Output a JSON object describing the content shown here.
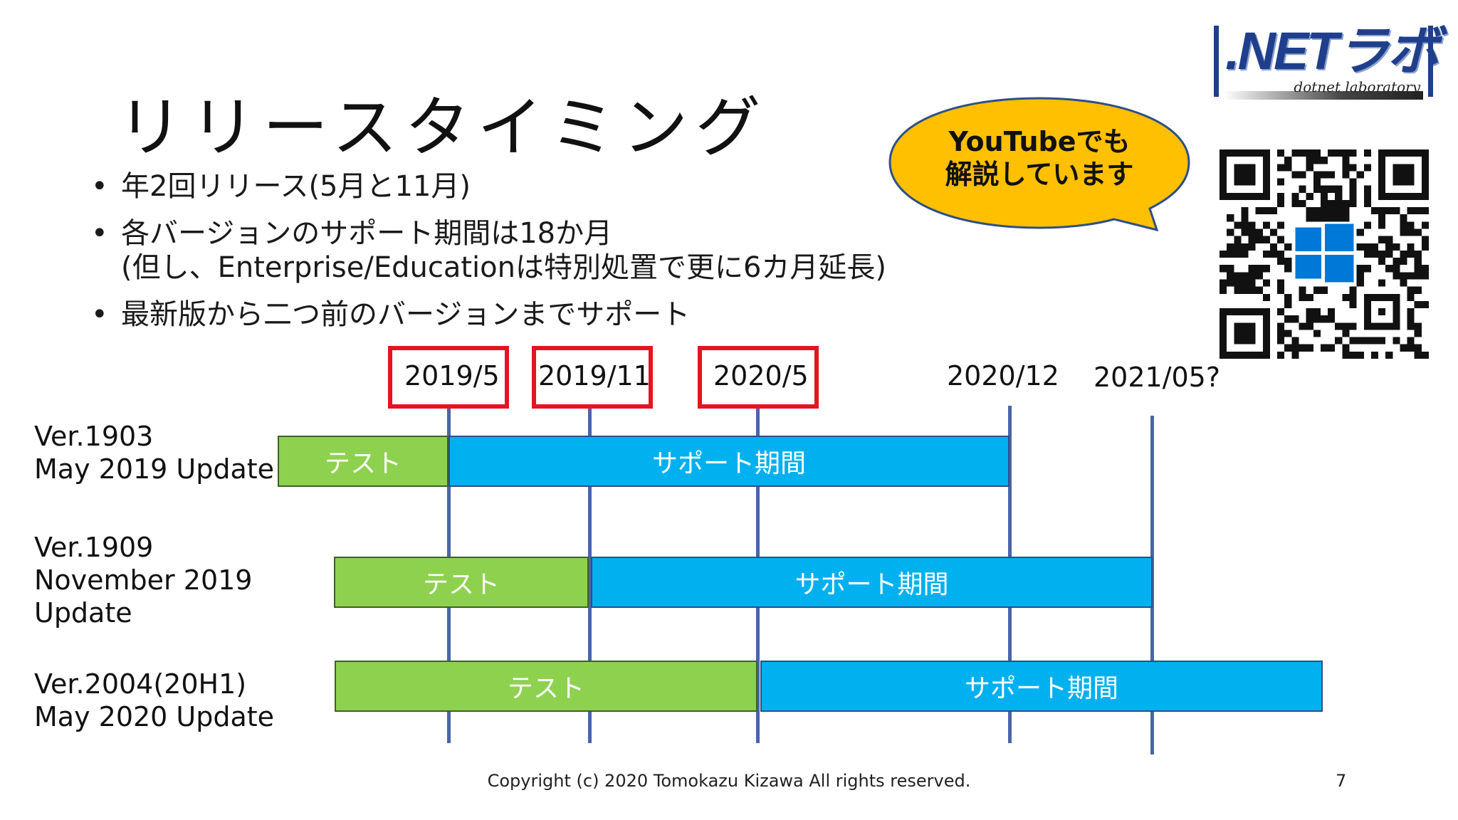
{
  "slide": {
    "title": "リリースタイミング",
    "bullets": [
      {
        "lines": [
          "年2回リリース(5月と11月)"
        ]
      },
      {
        "lines": [
          "各バージョンのサポート期間は18か月",
          "(但し、Enterprise/Educationは特別処置で更に6カ月延長)"
        ]
      },
      {
        "lines": [
          "最新版から二つ前のバージョンまでサポート"
        ]
      }
    ],
    "bullet_symbol": "•"
  },
  "logo": {
    "main": ".NETラボ",
    "sub": "dotnet laboratory",
    "color": "#1f3f8c"
  },
  "bubble": {
    "line1": "YouTubeでも",
    "line2": "解説しています",
    "fill": "#fec000"
  },
  "timeline": {
    "dates": [
      "2019/5",
      "2019/11",
      "2020/5",
      "2020/12",
      "2021/05?"
    ],
    "highlighted": [
      "2019/5",
      "2019/11",
      "2020/5"
    ],
    "versions": [
      {
        "name": "Ver.1903",
        "label": [
          "May 2019 Update"
        ],
        "test": "テスト",
        "support": "サポート期間",
        "test_from": "2018/11",
        "test_to": "2019/5",
        "support_to": "2020/12"
      },
      {
        "name": "Ver.1909",
        "label": [
          "November 2019",
          "Update"
        ],
        "test": "テスト",
        "support": "サポート期間",
        "test_from": "2019/1",
        "test_to": "2019/11",
        "support_to": "2021/05?"
      },
      {
        "name": "Ver.2004(20H1)",
        "label": [
          "May 2020 Update"
        ],
        "test": "テスト",
        "support": "サポート期間",
        "test_from": "2019/1",
        "test_to": "2020/5",
        "support_to": "2021/11"
      }
    ],
    "colors": {
      "test": "#8ed14f",
      "support": "#00b0ef",
      "highlight": "#e3151f",
      "line": "#4a66a8"
    }
  },
  "footer": {
    "copyright": "Copyright (c) 2020 Tomokazu Kizawa All rights reserved.",
    "page": "7"
  },
  "icons": [
    "qr-code-icon",
    "windows-logo-icon"
  ]
}
